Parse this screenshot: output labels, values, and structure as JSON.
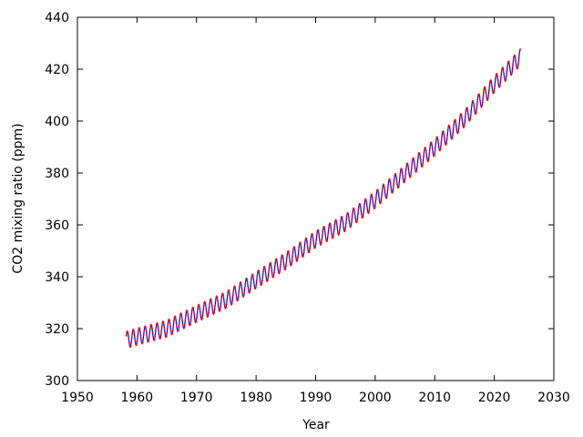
{
  "chart_data": {
    "type": "line",
    "title": "",
    "xlabel": "Year",
    "ylabel": "CO2 mixing ratio (ppm)",
    "xlim": [
      1950,
      2030
    ],
    "ylim": [
      300,
      440
    ],
    "xticks": [
      1950,
      1960,
      1970,
      1980,
      1990,
      2000,
      2010,
      2020,
      2030
    ],
    "yticks": [
      300,
      320,
      340,
      360,
      380,
      400,
      420,
      440
    ],
    "grid": false,
    "legend": "none",
    "series": [
      {
        "style": "solid-line",
        "color": "#0000ff",
        "x": [
          1958.2,
          1960,
          1965,
          1970,
          1975,
          1980,
          1985,
          1990,
          1995,
          2000,
          2005,
          2010,
          2015,
          2020,
          2024.4
        ],
        "values": [
          315.7,
          316.9,
          320.0,
          325.7,
          331.1,
          338.7,
          346.1,
          354.4,
          360.8,
          369.7,
          379.8,
          389.9,
          401.0,
          414.2,
          424.6
        ],
        "seasonal_amplitude": 3.2
      },
      {
        "style": "dotted-points",
        "color": "#ff0000",
        "x": [
          1958.2,
          1960,
          1965,
          1970,
          1975,
          1980,
          1985,
          1990,
          1995,
          2000,
          2005,
          2010,
          2015,
          2020,
          2024.4
        ],
        "values": [
          315.7,
          316.9,
          320.0,
          325.7,
          331.1,
          338.7,
          346.1,
          354.4,
          360.8,
          369.7,
          379.8,
          389.9,
          401.0,
          414.2,
          424.6
        ],
        "seasonal_amplitude": 3.2
      }
    ]
  }
}
